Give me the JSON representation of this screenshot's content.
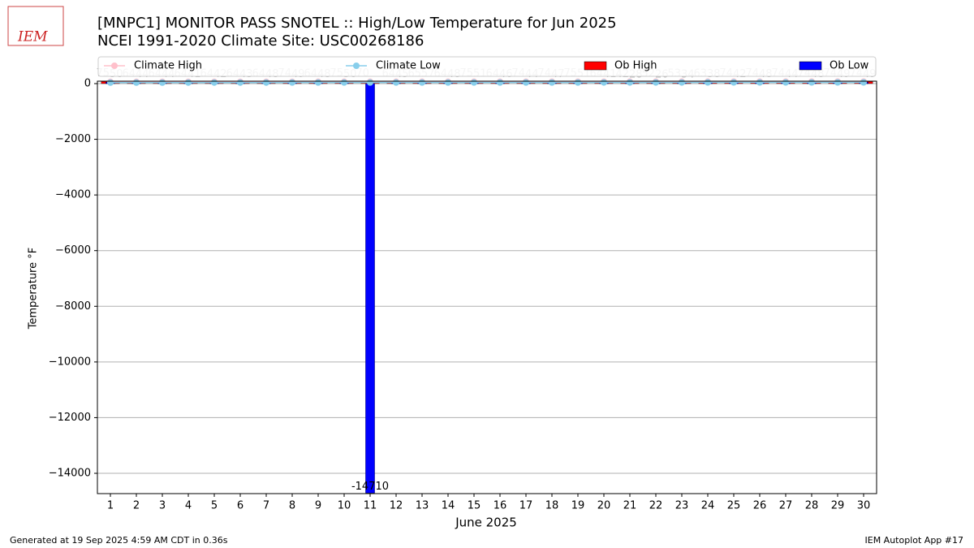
{
  "chart_data": {
    "type": "bar",
    "title": "[MNPC1] MONITOR PASS SNOTEL :: High/Low Temperature for Jun 2025",
    "subtitle": "NCEI 1991-2020 Climate Site: USC00268186",
    "logo_text": "IEM",
    "x_label": "June 2025",
    "y_label": "Temperature °F",
    "footer_left": "Generated at 19 Sep 2025 4:59 AM CDT in 0.36s",
    "footer_right": "IEM Autoplot App #17",
    "categories": [
      "1",
      "2",
      "3",
      "4",
      "5",
      "6",
      "7",
      "8",
      "9",
      "10",
      "11",
      "12",
      "13",
      "14",
      "15",
      "16",
      "17",
      "18",
      "19",
      "20",
      "21",
      "22",
      "23",
      "24",
      "25",
      "26",
      "27",
      "28",
      "29",
      "30"
    ],
    "series": [
      {
        "name": "Climate High",
        "color": "#ffc0cb",
        "kind": "line",
        "values": [
          64,
          64,
          65,
          65,
          65,
          66,
          66,
          66,
          67,
          67,
          67,
          68,
          68,
          68,
          69,
          69,
          69,
          70,
          70,
          70,
          71,
          71,
          71,
          71,
          72,
          72,
          72,
          72,
          73,
          73
        ]
      },
      {
        "name": "Climate Low",
        "color": "#87ceeb",
        "kind": "line",
        "values": [
          36,
          36,
          36,
          37,
          37,
          37,
          37,
          38,
          38,
          38,
          38,
          39,
          39,
          39,
          39,
          40,
          40,
          40,
          40,
          41,
          41,
          41,
          41,
          42,
          42,
          42,
          42,
          42,
          43,
          43
        ]
      },
      {
        "name": "Ob High",
        "color": "#ff0000",
        "kind": "bar",
        "values": [
          75,
          64,
          64,
          64,
          64,
          64,
          64,
          74,
          64,
          75,
          70,
          64,
          65,
          64,
          75,
          64,
          74,
          74,
          75,
          64,
          42,
          52,
          53,
          63,
          74,
          74,
          74,
          74,
          74,
          74
        ]
      },
      {
        "name": "Ob Low",
        "color": "#0000ff",
        "kind": "bar",
        "values": [
          50,
          44,
          44,
          41,
          42,
          43,
          48,
          49,
          48,
          50,
          -14710,
          45,
          57,
          48,
          51,
          46,
          44,
          47,
          51,
          41,
          28,
          26,
          34,
          38,
          42,
          48,
          44,
          48,
          49,
          49
        ]
      }
    ],
    "xlim": [
      0.5,
      30.5
    ],
    "ylim": [
      -14729,
      87
    ],
    "yticks": [
      0,
      {
        "value": -2000,
        "label": "−2000"
      },
      {
        "value": -4000,
        "label": "−4000"
      },
      {
        "value": -6000,
        "label": "−6000"
      },
      {
        "value": -8000,
        "label": "−8000"
      },
      {
        "value": -10000,
        "label": "−10000"
      },
      {
        "value": -12000,
        "label": "−12000"
      },
      {
        "value": -14000,
        "label": "−14000"
      }
    ],
    "grid": true
  }
}
